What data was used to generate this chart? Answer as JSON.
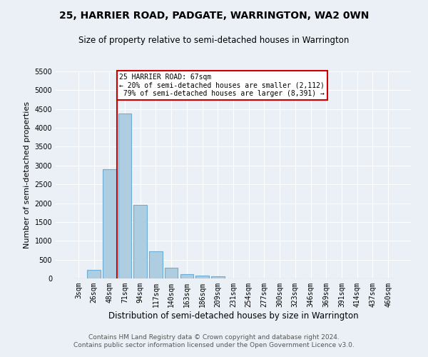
{
  "title": "25, HARRIER ROAD, PADGATE, WARRINGTON, WA2 0WN",
  "subtitle": "Size of property relative to semi-detached houses in Warrington",
  "xlabel": "Distribution of semi-detached houses by size in Warrington",
  "ylabel": "Number of semi-detached properties",
  "footer_line1": "Contains HM Land Registry data © Crown copyright and database right 2024.",
  "footer_line2": "Contains public sector information licensed under the Open Government Licence v3.0.",
  "categories": [
    "3sqm",
    "26sqm",
    "48sqm",
    "71sqm",
    "94sqm",
    "117sqm",
    "140sqm",
    "163sqm",
    "186sqm",
    "209sqm",
    "231sqm",
    "254sqm",
    "277sqm",
    "300sqm",
    "323sqm",
    "346sqm",
    "369sqm",
    "391sqm",
    "414sqm",
    "437sqm",
    "460sqm"
  ],
  "values": [
    0,
    220,
    2900,
    4380,
    1950,
    730,
    285,
    115,
    75,
    55,
    0,
    0,
    0,
    0,
    0,
    0,
    0,
    0,
    0,
    0,
    0
  ],
  "bar_color": "#aecde1",
  "bar_edgecolor": "#6aadd5",
  "property_label": "25 HARRIER ROAD: 67sqm",
  "pct_smaller": 20,
  "count_smaller": 2112,
  "pct_larger": 79,
  "count_larger": 8391,
  "vline_x_index": 2.5,
  "ylim": [
    0,
    5500
  ],
  "yticks": [
    0,
    500,
    1000,
    1500,
    2000,
    2500,
    3000,
    3500,
    4000,
    4500,
    5000,
    5500
  ],
  "bg_color": "#eaf0f6",
  "grid_color": "#ffffff",
  "annotation_box_color": "#ffffff",
  "annotation_box_edgecolor": "#cc0000",
  "vline_color": "#cc0000",
  "title_fontsize": 10,
  "subtitle_fontsize": 8.5,
  "xlabel_fontsize": 8.5,
  "ylabel_fontsize": 8,
  "tick_fontsize": 7,
  "footer_fontsize": 6.5
}
